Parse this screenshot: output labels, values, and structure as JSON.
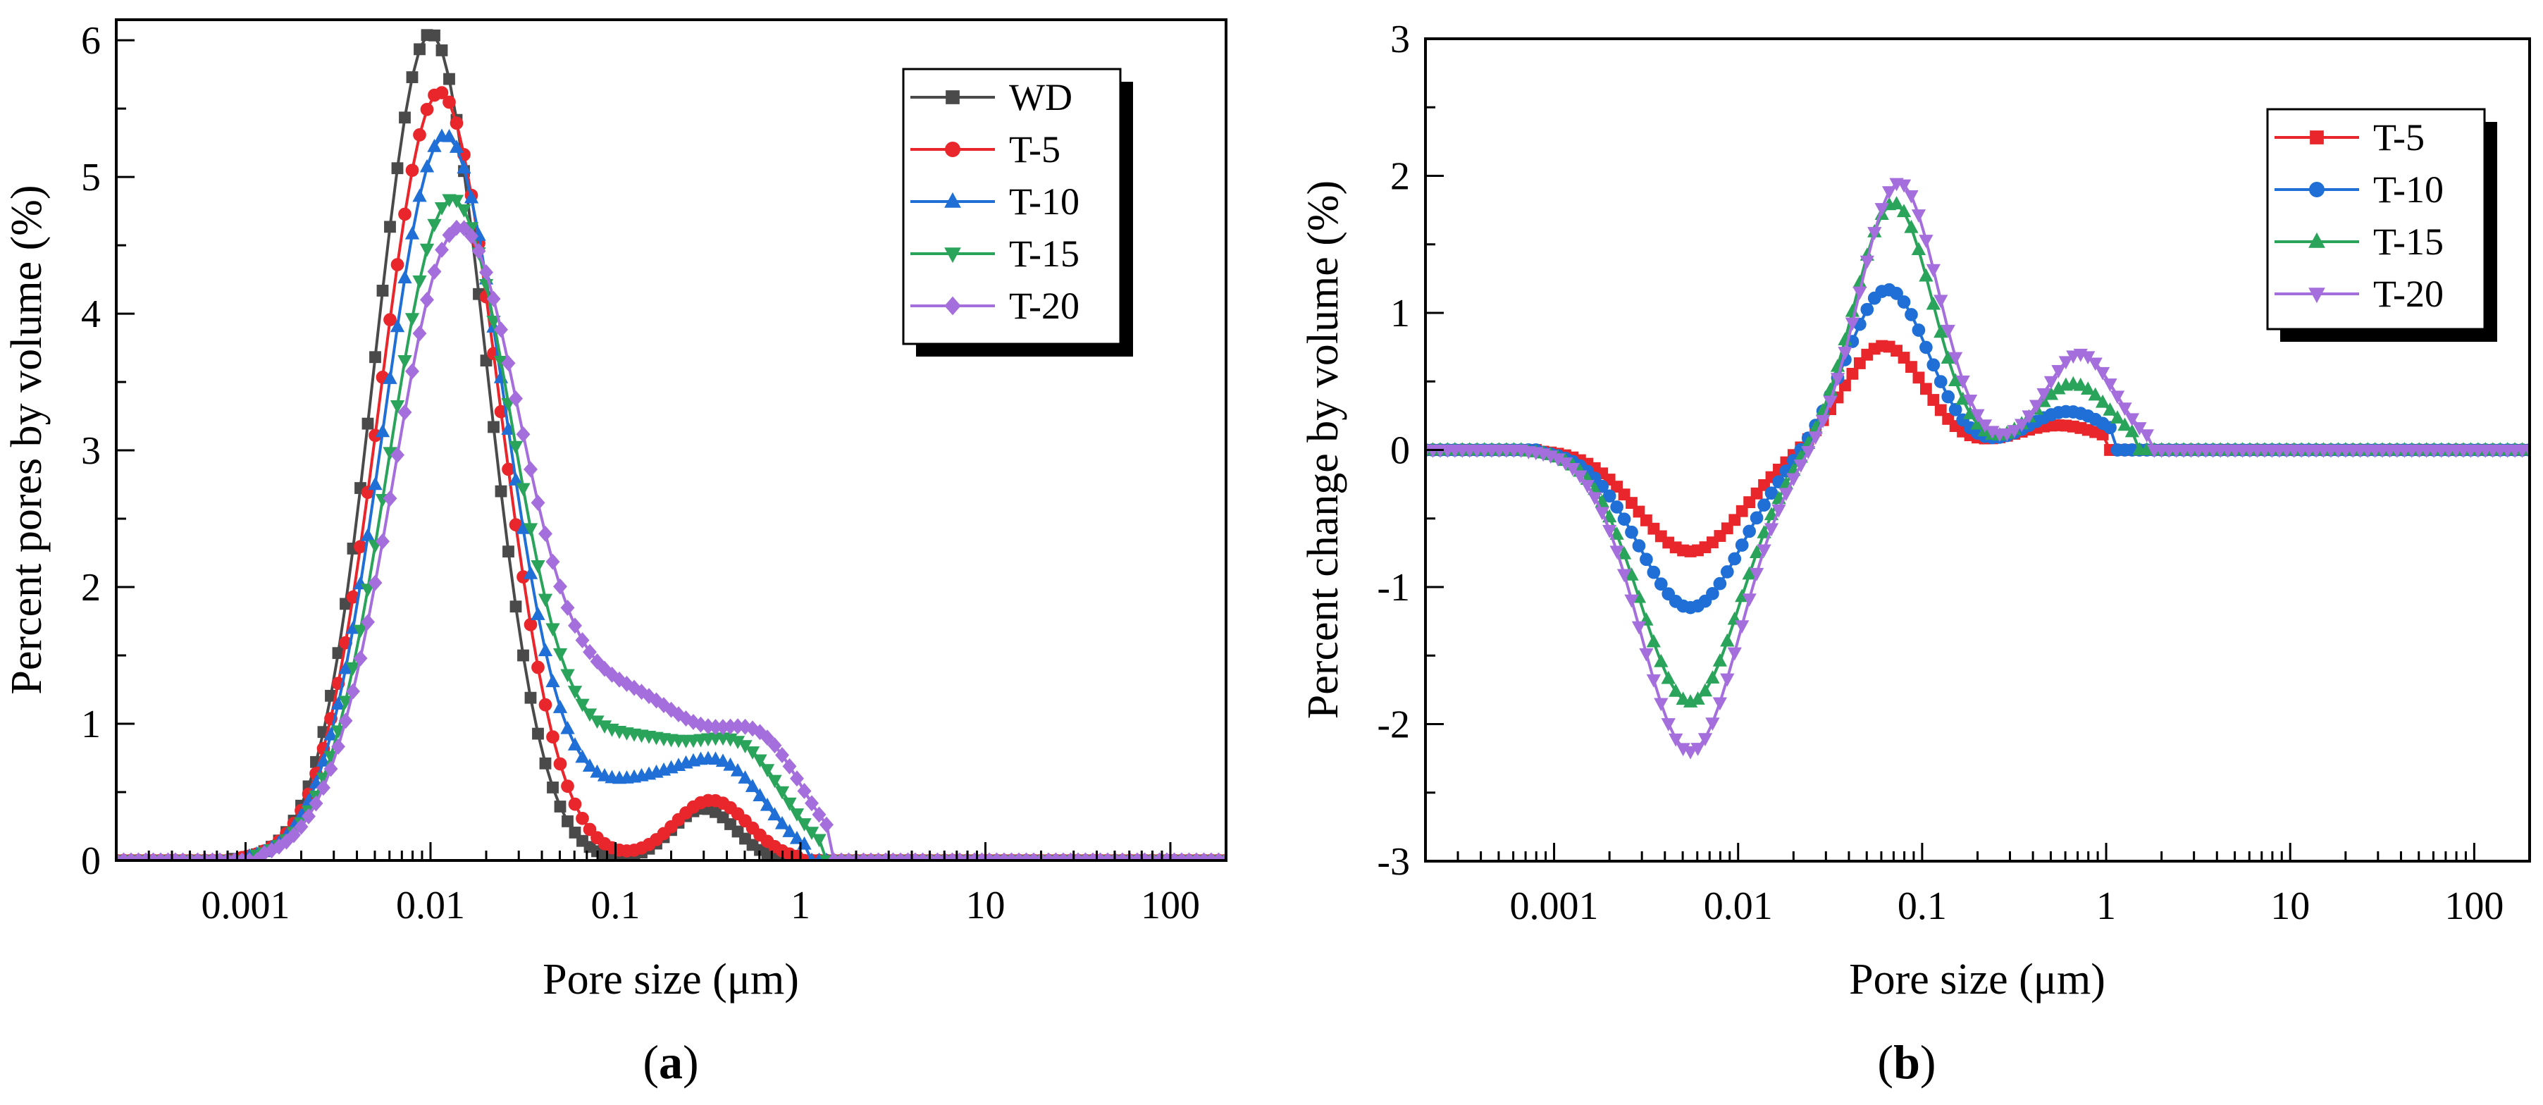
{
  "figure": {
    "label_a": "a",
    "label_b": "b"
  },
  "colors": {
    "WD": "#4a4a4a",
    "T-5": "#e8262b",
    "T-10": "#1f6fd6",
    "T-15": "#2aa35b",
    "T-20": "#a46fdc"
  },
  "chart_data": [
    {
      "type": "line",
      "title": "",
      "panel_label": "a",
      "xlabel": "Pore size (μm)",
      "ylabel": "Percent pores by volume (%)",
      "xscale": "log",
      "xlim": [
        0.0002,
        200
      ],
      "ylim": [
        0,
        6.15
      ],
      "xticks": [
        0.001,
        0.01,
        0.1,
        1,
        10,
        100
      ],
      "xtick_labels": [
        "0.001",
        "0.01",
        "0.1",
        "1",
        "10",
        "100"
      ],
      "yticks": [
        0,
        1,
        2,
        3,
        4,
        5,
        6
      ],
      "ytick_labels": [
        "0",
        "1",
        "2",
        "3",
        "4",
        "5",
        "6"
      ],
      "legend_position": "top-right",
      "marker_spacing_decades": 0.04,
      "series": [
        {
          "name": "WD",
          "marker": "square",
          "peaks": [
            {
              "center": 0.01,
              "height": 6.05,
              "sigma": 0.3
            },
            {
              "center": 0.3,
              "height": 0.38,
              "sigma": 0.17
            }
          ],
          "xmin": 0.0008,
          "xmax": 0.78
        },
        {
          "name": "T-5",
          "marker": "circle",
          "peaks": [
            {
              "center": 0.0112,
              "height": 5.62,
              "sigma": 0.32
            },
            {
              "center": 0.33,
              "height": 0.44,
              "sigma": 0.2
            }
          ],
          "xmin": 0.0009,
          "xmax": 0.98
        },
        {
          "name": "T-10",
          "marker": "triangle-up",
          "peaks": [
            {
              "center": 0.012,
              "height": 5.3,
              "sigma": 0.33
            },
            {
              "center": 0.15,
              "height": 0.55,
              "sigma": 0.35
            },
            {
              "center": 0.42,
              "height": 0.45,
              "sigma": 0.22
            }
          ],
          "xmin": 0.001,
          "xmax": 1.15
        },
        {
          "name": "T-15",
          "marker": "triangle-down",
          "peaks": [
            {
              "center": 0.013,
              "height": 4.82,
              "sigma": 0.34
            },
            {
              "center": 0.14,
              "height": 0.85,
              "sigma": 0.38
            },
            {
              "center": 0.52,
              "height": 0.55,
              "sigma": 0.22
            }
          ],
          "xmin": 0.0011,
          "xmax": 1.35
        },
        {
          "name": "T-20",
          "marker": "diamond",
          "peaks": [
            {
              "center": 0.014,
              "height": 4.55,
              "sigma": 0.35
            },
            {
              "center": 0.13,
              "height": 1.15,
              "sigma": 0.42
            },
            {
              "center": 0.65,
              "height": 0.62,
              "sigma": 0.22
            }
          ],
          "xmin": 0.0012,
          "xmax": 1.4
        }
      ]
    },
    {
      "type": "line",
      "title": "",
      "panel_label": "b",
      "xlabel": "Pore size (μm)",
      "ylabel": "Percent change by volume (%)",
      "xscale": "log",
      "xlim": [
        0.0002,
        200
      ],
      "ylim": [
        -3,
        3
      ],
      "xticks": [
        0.001,
        0.01,
        0.1,
        1,
        10,
        100
      ],
      "xtick_labels": [
        "0.001",
        "0.01",
        "0.1",
        "1",
        "10",
        "100"
      ],
      "yticks": [
        -3,
        -2,
        -1,
        0,
        1,
        2,
        3
      ],
      "ytick_labels": [
        "-3",
        "-2",
        "-1",
        "0",
        "1",
        "2",
        "3"
      ],
      "legend_position": "top-right",
      "marker_spacing_decades": 0.04,
      "series": [
        {
          "name": "T-5",
          "marker": "square",
          "peaks": [
            {
              "center": 0.0055,
              "height": -0.74,
              "sigma": 0.28
            },
            {
              "center": 0.062,
              "height": 0.76,
              "sigma": 0.22
            },
            {
              "center": 0.55,
              "height": 0.18,
              "sigma": 0.25
            }
          ],
          "xmin": 0.0008,
          "xmax": 1.0
        },
        {
          "name": "T-10",
          "marker": "circle",
          "peaks": [
            {
              "center": 0.0055,
              "height": -1.15,
              "sigma": 0.28
            },
            {
              "center": 0.065,
              "height": 1.17,
              "sigma": 0.22
            },
            {
              "center": 0.62,
              "height": 0.28,
              "sigma": 0.22
            }
          ],
          "xmin": 0.0008,
          "xmax": 1.1
        },
        {
          "name": "T-15",
          "marker": "triangle-up",
          "peaks": [
            {
              "center": 0.0055,
              "height": -1.84,
              "sigma": 0.27
            },
            {
              "center": 0.07,
              "height": 1.8,
              "sigma": 0.21
            },
            {
              "center": 0.66,
              "height": 0.48,
              "sigma": 0.2
            }
          ],
          "xmin": 0.0007,
          "xmax": 1.4
        },
        {
          "name": "T-20",
          "marker": "triangle-down",
          "peaks": [
            {
              "center": 0.0055,
              "height": -2.2,
              "sigma": 0.27
            },
            {
              "center": 0.075,
              "height": 1.95,
              "sigma": 0.21
            },
            {
              "center": 0.72,
              "height": 0.7,
              "sigma": 0.19
            }
          ],
          "xmin": 0.0007,
          "xmax": 1.75
        }
      ]
    }
  ]
}
